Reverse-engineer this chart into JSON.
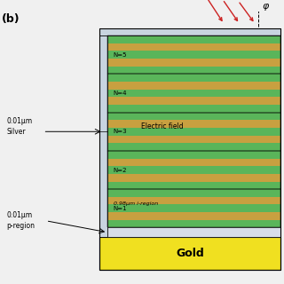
{
  "background_color": "#f0f0f0",
  "panel_b_label": "(b)",
  "phi_label": "φ",
  "gold_color": "#f0e020",
  "gold_label": "Gold",
  "silver_color": "#c8d4e0",
  "p_region_color": "#d8dde8",
  "i_region_bg": "#e8e8e8",
  "green_color": "#5ab55a",
  "tan_color": "#c8a040",
  "n_layers": 5,
  "layer_labels": [
    "N=5",
    "N=4",
    "N=3",
    "N=2",
    "N=1"
  ],
  "annotation_silver": "0.01μm\nSilver",
  "annotation_p": "0.01μm\np-region",
  "annotation_i": "0.98μm i-region",
  "annotation_efield": "Electric field",
  "arrow_color": "#cc2222",
  "figsize": [
    3.2,
    3.2
  ],
  "dpi": 100
}
